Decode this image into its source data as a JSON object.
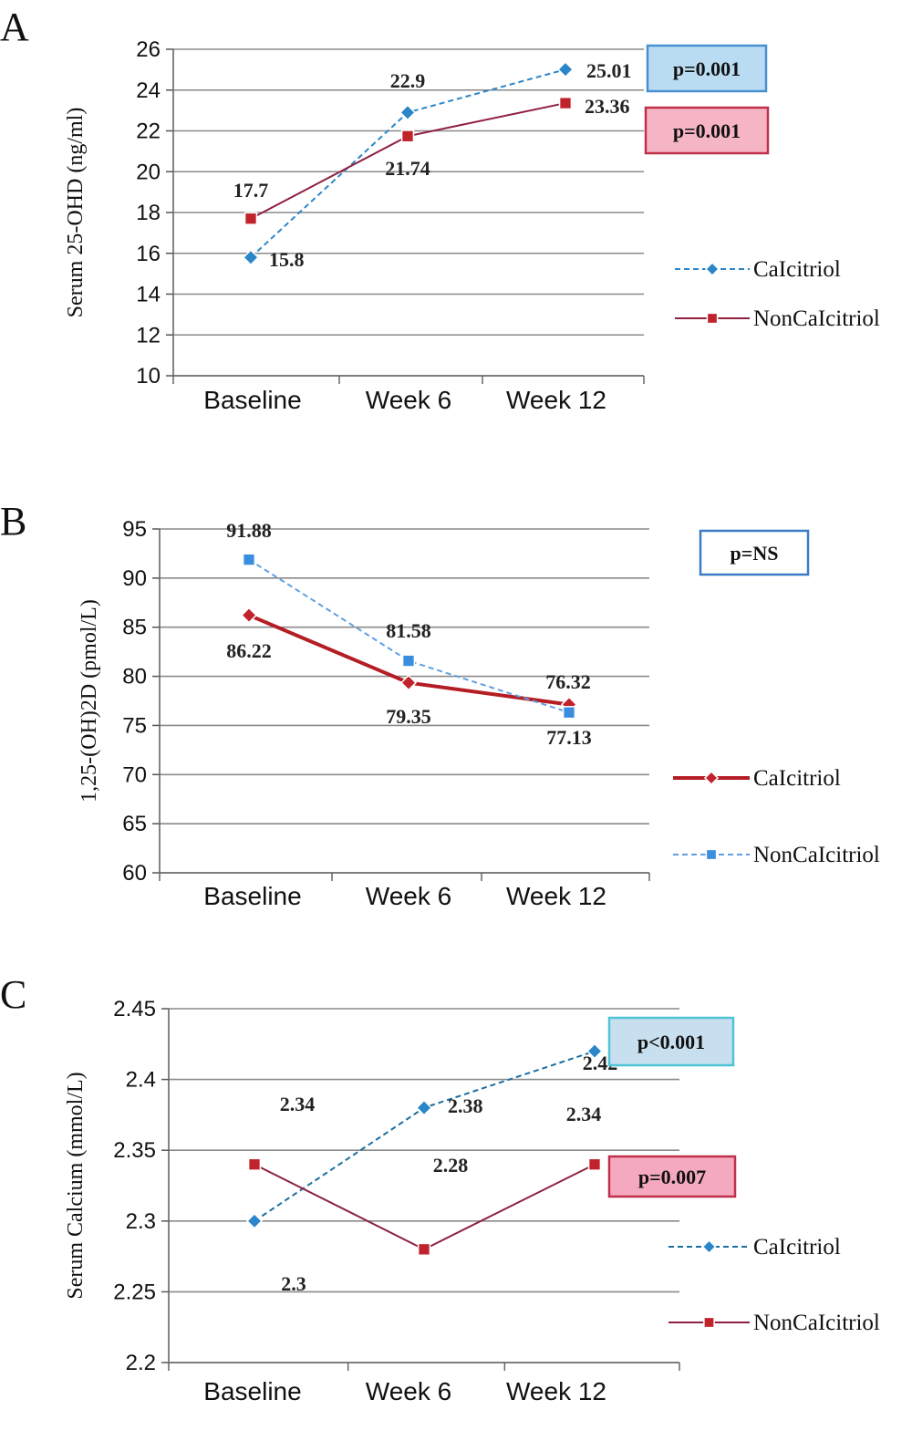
{
  "chart_data": [
    {
      "panel": "A",
      "type": "line",
      "categories": [
        "Baseline",
        "Week 6",
        "Week 12"
      ],
      "ylabel": "Serum 25-OHD (ng/ml)",
      "ylim": [
        10,
        26
      ],
      "yticks": [
        10,
        12,
        14,
        16,
        18,
        20,
        22,
        24,
        26
      ],
      "ytick_labels": [
        "10",
        "12",
        "14",
        "16",
        "18",
        "20",
        "22",
        "24",
        "26"
      ],
      "grid": true,
      "series": [
        {
          "name": "CaIcitriol",
          "values": [
            15.8,
            22.9,
            25.01
          ],
          "labels": [
            "15.8",
            "22.9",
            "25.01"
          ],
          "color": "#2a86c9",
          "line_color": "#2a86c9",
          "dashed": true,
          "marker": "diamond"
        },
        {
          "name": "NonCaIcitriol",
          "values": [
            17.7,
            21.74,
            23.36
          ],
          "labels": [
            "17.7",
            "21.74",
            "23.36"
          ],
          "color": "#c0232b",
          "line_color": "#8f2040",
          "dashed": false,
          "marker": "square"
        }
      ],
      "annotations": [
        {
          "text": "p=0.001",
          "fill": "#b9dcf3",
          "stroke": "#4a8fd0"
        },
        {
          "text": "p=0.001",
          "fill": "#f5b5c4",
          "stroke": "#c0304a"
        }
      ]
    },
    {
      "panel": "B",
      "type": "line",
      "categories": [
        "Baseline",
        "Week 6",
        "Week 12"
      ],
      "ylabel": "1,25-(OH)2D (pmol/L)",
      "ylim": [
        60,
        95
      ],
      "yticks": [
        60,
        65,
        70,
        75,
        80,
        85,
        90,
        95
      ],
      "ytick_labels": [
        "60",
        "65",
        "70",
        "75",
        "80",
        "85",
        "90",
        "95"
      ],
      "grid": true,
      "series": [
        {
          "name": "CaIcitriol",
          "values": [
            86.22,
            79.35,
            77.13
          ],
          "labels": [
            "86.22",
            "79.35",
            "77.13"
          ],
          "color": "#c0232b",
          "line_color": "#b51d24",
          "dashed": false,
          "marker": "diamond"
        },
        {
          "name": "NonCaIcitriol",
          "values": [
            91.88,
            81.58,
            76.32
          ],
          "labels": [
            "91.88",
            "81.58",
            "76.32"
          ],
          "color": "#3a8ee0",
          "line_color": "#5f9fe0",
          "dashed": true,
          "marker": "square"
        }
      ],
      "annotations": [
        {
          "text": "p=NS",
          "fill": "#ffffff",
          "stroke": "#3a7cc4"
        }
      ]
    },
    {
      "panel": "C",
      "type": "line",
      "categories": [
        "Baseline",
        "Week 6",
        "Week 12"
      ],
      "ylabel": "Serum Calcium (mmol/L)",
      "ylim": [
        2.2,
        2.45
      ],
      "yticks": [
        2.2,
        2.25,
        2.3,
        2.35,
        2.4,
        2.45
      ],
      "ytick_labels": [
        "2.2",
        "2.25",
        "2.3",
        "2.35",
        "2.4",
        "2.45"
      ],
      "grid": true,
      "series": [
        {
          "name": "CaIcitriol",
          "values": [
            2.3,
            2.38,
            2.42
          ],
          "labels": [
            "2.3",
            "2.38",
            "2.42"
          ],
          "color": "#2a86c9",
          "line_color": "#1a6f9f",
          "dashed": true,
          "marker": "diamond"
        },
        {
          "name": "NonCaIcitriol",
          "values": [
            2.34,
            2.28,
            2.34
          ],
          "labels": [
            "2.34",
            "2.28",
            "2.34"
          ],
          "color": "#c0232b",
          "line_color": "#8f2040",
          "dashed": false,
          "marker": "square"
        }
      ],
      "annotations": [
        {
          "text": "p<0.001",
          "fill": "#c8dff0",
          "stroke": "#4fc4d6"
        },
        {
          "text": "p=0.007",
          "fill": "#f5a9c0",
          "stroke": "#c0304a"
        }
      ]
    }
  ]
}
